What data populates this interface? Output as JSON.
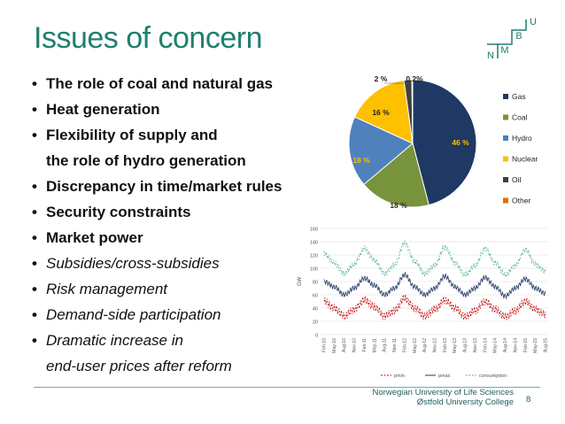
{
  "slide": {
    "title": "Issues of concern",
    "bullets": [
      {
        "text": "The role of coal and natural gas",
        "style": "bold"
      },
      {
        "text": "Heat generation",
        "style": "bold"
      },
      {
        "text": "Flexibility of supply and",
        "style": "bold"
      },
      {
        "text": "the role of hydro generation",
        "style": "bold",
        "continuation": true
      },
      {
        "text": "Discrepancy in time/market rules",
        "style": "bold"
      },
      {
        "text": "Security constraints",
        "style": "bold"
      },
      {
        "text": "Market power",
        "style": "bold"
      },
      {
        "text": "Subsidies/cross-subsidies",
        "style": "italic"
      },
      {
        "text": "Risk management",
        "style": "italic"
      },
      {
        "text": "Demand-side participation",
        "style": "italic"
      },
      {
        "text": "Dramatic increase in",
        "style": "italic"
      },
      {
        "text": "end-user prices after reform",
        "style": "italic",
        "continuation": true
      }
    ],
    "bullet_symbol": "•",
    "footer": {
      "line1": "Norwegian University of Life Sciences",
      "line2": "Østfold University College",
      "page": "8"
    },
    "logo": {
      "letters": [
        "U",
        "B",
        "M",
        "N"
      ],
      "color": "#1f7f6e"
    },
    "title_color": "#1f7f6e"
  },
  "chart_data": [
    {
      "type": "pie",
      "slices": [
        {
          "name": "Gas",
          "value": 46,
          "label": "46 %",
          "color": "#1f3864"
        },
        {
          "name": "Coal",
          "value": 18,
          "label": "18 %",
          "color": "#77933c"
        },
        {
          "name": "Hydro",
          "value": 18,
          "label": "18 %",
          "color": "#4f81bd"
        },
        {
          "name": "Nuclear",
          "value": 16,
          "label": "16 %",
          "color": "#ffc000"
        },
        {
          "name": "Oil",
          "value": 2,
          "label": "2 %",
          "color": "#404040"
        },
        {
          "name": "Other",
          "value": 0.2,
          "label": "0.2%",
          "color": "#e36c09"
        }
      ],
      "legend_position": "right"
    },
    {
      "type": "line",
      "ylabel": "GW",
      "ylim": [
        0,
        160
      ],
      "yticks": [
        0,
        20,
        40,
        60,
        80,
        100,
        120,
        140,
        160
      ],
      "grid": true,
      "legend_position": "bottom",
      "xticks": [
        "Feb-10",
        "May-10",
        "Aug-10",
        "Nov-10",
        "Feb-11",
        "May-11",
        "Aug-11",
        "Nov-11",
        "Feb-12",
        "May-12",
        "Aug-12",
        "Nov-12",
        "Feb-13",
        "May-13",
        "Aug-13",
        "Nov-13",
        "Feb-14",
        "May-14",
        "Aug-14",
        "Nov-14",
        "Feb-15",
        "May-15",
        "Aug-15"
      ],
      "series": [
        {
          "name": "pmin",
          "color": "#c00000",
          "dash": "dashed",
          "values": [
            50,
            40,
            28,
            38,
            52,
            42,
            28,
            36,
            55,
            40,
            28,
            38,
            52,
            40,
            27,
            36,
            50,
            38,
            27,
            36,
            50,
            38,
            30
          ]
        },
        {
          "name": "pmax",
          "color": "#1f3864",
          "dash": "solid",
          "values": [
            80,
            72,
            60,
            70,
            85,
            74,
            60,
            70,
            90,
            72,
            60,
            70,
            88,
            72,
            60,
            70,
            86,
            72,
            58,
            70,
            84,
            70,
            62
          ]
        },
        {
          "name": "consumption",
          "color": "#4ead9a",
          "dash": "dashed",
          "values": [
            122,
            108,
            92,
            106,
            130,
            112,
            92,
            105,
            138,
            110,
            92,
            104,
            132,
            108,
            90,
            104,
            130,
            108,
            90,
            104,
            128,
            106,
            95
          ]
        }
      ]
    }
  ]
}
